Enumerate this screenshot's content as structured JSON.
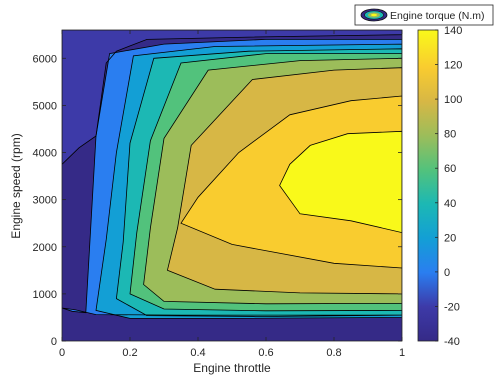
{
  "chart_data": {
    "type": "contour",
    "xlabel": "Engine throttle",
    "ylabel": "Engine speed (rpm)",
    "xlim": [
      0,
      1
    ],
    "ylim": [
      0,
      6600
    ],
    "xticks": [
      0,
      0.2,
      0.4,
      0.6,
      0.8,
      1
    ],
    "xtick_labels": [
      "0",
      "0.2",
      "0.4",
      "0.6",
      "0.8",
      "1"
    ],
    "yticks": [
      0,
      1000,
      2000,
      3000,
      4000,
      5000,
      6000
    ],
    "ytick_labels": [
      "0",
      "1000",
      "2000",
      "3000",
      "4000",
      "5000",
      "6000"
    ],
    "legend": {
      "label": "Engine torque (N.m)",
      "placement": "top-right"
    },
    "colorbar": {
      "label": "Engine torque (N.m)",
      "clim": [
        -40,
        140
      ],
      "ticks": [
        -40,
        -20,
        0,
        20,
        40,
        60,
        80,
        100,
        120,
        140
      ],
      "tick_labels": [
        "-40",
        "-20",
        "0",
        "20",
        "40",
        "60",
        "80",
        "100",
        "120",
        "140"
      ]
    },
    "levels": [
      -20,
      0,
      20,
      40,
      60,
      80,
      100,
      120
    ],
    "level_colors": [
      "#3d3aa8",
      "#2a7ef0",
      "#139fd5",
      "#1cb8b4",
      "#52c27c",
      "#9cbd5a",
      "#d7b745",
      "#f9cc2f",
      "#f9f91a"
    ],
    "grid": false,
    "contours": [
      {
        "level": -20,
        "points": [
          [
            0,
            3750
          ],
          [
            0.05,
            4100
          ],
          [
            0.1,
            4350
          ],
          [
            0.13,
            5900
          ],
          [
            0.16,
            6150
          ],
          [
            0.25,
            6400
          ],
          [
            0.55,
            6450
          ],
          [
            1,
            6500
          ],
          [
            1,
            6600
          ],
          [
            0,
            6600
          ]
        ]
      },
      {
        "level": 0,
        "points": [
          [
            0,
            700
          ],
          [
            0.03,
            630
          ],
          [
            0.07,
            600
          ],
          [
            0.1,
            4350
          ],
          [
            0.14,
            6100
          ],
          [
            0.3,
            6300
          ],
          [
            0.6,
            6400
          ],
          [
            1,
            6400
          ],
          [
            1,
            550
          ],
          [
            0.35,
            550
          ],
          [
            0.1,
            560
          ],
          [
            0.04,
            660
          ],
          [
            0,
            700
          ]
        ]
      },
      {
        "level": 20,
        "points": [
          [
            0.1,
            650
          ],
          [
            0.13,
            2150
          ],
          [
            0.16,
            4000
          ],
          [
            0.21,
            6050
          ],
          [
            0.45,
            6250
          ],
          [
            1,
            6300
          ],
          [
            1,
            500
          ],
          [
            0.5,
            480
          ],
          [
            0.2,
            480
          ],
          [
            0.1,
            650
          ]
        ]
      },
      {
        "level": 40,
        "points": [
          [
            0.16,
            900
          ],
          [
            0.18,
            2100
          ],
          [
            0.2,
            4200
          ],
          [
            0.27,
            6000
          ],
          [
            0.55,
            6150
          ],
          [
            1,
            6200
          ],
          [
            1,
            550
          ],
          [
            0.6,
            520
          ],
          [
            0.25,
            540
          ],
          [
            0.16,
            900
          ]
        ]
      },
      {
        "level": 60,
        "points": [
          [
            0.2,
            1000
          ],
          [
            0.22,
            2300
          ],
          [
            0.26,
            4250
          ],
          [
            0.35,
            5900
          ],
          [
            0.6,
            6100
          ],
          [
            1,
            6100
          ],
          [
            1,
            650
          ],
          [
            0.6,
            640
          ],
          [
            0.3,
            680
          ],
          [
            0.2,
            1000
          ]
        ]
      },
      {
        "level": 80,
        "points": [
          [
            0.24,
            1200
          ],
          [
            0.26,
            2400
          ],
          [
            0.3,
            4300
          ],
          [
            0.43,
            5750
          ],
          [
            0.7,
            5950
          ],
          [
            1,
            6000
          ],
          [
            1,
            800
          ],
          [
            0.6,
            790
          ],
          [
            0.3,
            840
          ],
          [
            0.24,
            1200
          ]
        ]
      },
      {
        "level": 100,
        "points": [
          [
            0.31,
            1500
          ],
          [
            0.34,
            2400
          ],
          [
            0.38,
            4150
          ],
          [
            0.56,
            5550
          ],
          [
            0.8,
            5750
          ],
          [
            1,
            5800
          ],
          [
            1,
            1000
          ],
          [
            0.7,
            1020
          ],
          [
            0.45,
            1100
          ],
          [
            0.31,
            1500
          ]
        ]
      },
      {
        "level": 120,
        "points": [
          [
            0.35,
            2500
          ],
          [
            0.4,
            3050
          ],
          [
            0.52,
            4000
          ],
          [
            0.67,
            4800
          ],
          [
            0.85,
            5100
          ],
          [
            1,
            5200
          ],
          [
            1,
            1550
          ],
          [
            0.8,
            1650
          ],
          [
            0.5,
            2050
          ],
          [
            0.35,
            2500
          ]
        ]
      },
      {
        "level": 140,
        "points": [
          [
            0.64,
            3300
          ],
          [
            0.67,
            3750
          ],
          [
            0.73,
            4150
          ],
          [
            0.84,
            4400
          ],
          [
            1,
            4450
          ],
          [
            1,
            2300
          ],
          [
            0.85,
            2550
          ],
          [
            0.7,
            2700
          ],
          [
            0.64,
            3300
          ]
        ]
      }
    ]
  }
}
